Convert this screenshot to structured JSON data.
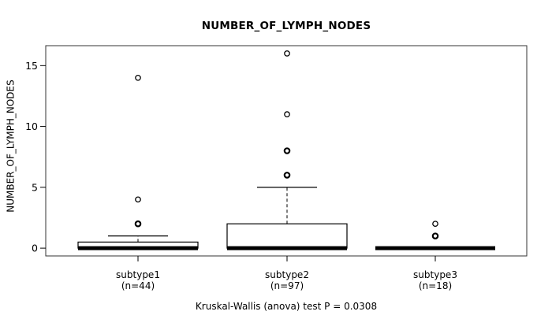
{
  "figure": {
    "title": "NUMBER_OF_LYMPH_NODES",
    "y_axis_label": "NUMBER_OF_LYMPH_NODES",
    "caption": "Kruskal-Wallis (anova) test P = 0.0308"
  },
  "chart_data": {
    "type": "boxplot",
    "title": "NUMBER_OF_LYMPH_NODES",
    "xlabel": "",
    "ylabel": "NUMBER_OF_LYMPH_NODES",
    "annotation": "Kruskal-Wallis (anova) test P = 0.0308",
    "yticks": [
      0,
      5,
      10,
      15
    ],
    "ylim": [
      0,
      16
    ],
    "grid": false,
    "legend": "none",
    "categories": [
      "subtype1",
      "subtype2",
      "subtype3"
    ],
    "groups": [
      {
        "label": "subtype1",
        "n_label": "(n=44)",
        "n": 44,
        "q1": 0,
        "median": 0,
        "q3": 0.5,
        "whisker_low": 0,
        "whisker_high": 1,
        "outliers": [
          2,
          4,
          14
        ],
        "overplotted_outliers": [
          2
        ]
      },
      {
        "label": "subtype2",
        "n_label": "(n=97)",
        "n": 97,
        "q1": 0,
        "median": 0,
        "q3": 2,
        "whisker_low": 0,
        "whisker_high": 5,
        "outliers": [
          6,
          8,
          11,
          16
        ],
        "overplotted_outliers": [
          6,
          8
        ]
      },
      {
        "label": "subtype3",
        "n_label": "(n=18)",
        "n": 18,
        "q1": 0,
        "median": 0,
        "q3": 0,
        "whisker_low": 0,
        "whisker_high": 0,
        "outliers": [
          1,
          2
        ],
        "overplotted_outliers": [
          1
        ]
      }
    ],
    "colors": {
      "stroke": "#000000",
      "box_fill": "#ffffff",
      "border": "#333333",
      "background": "#ffffff"
    }
  }
}
